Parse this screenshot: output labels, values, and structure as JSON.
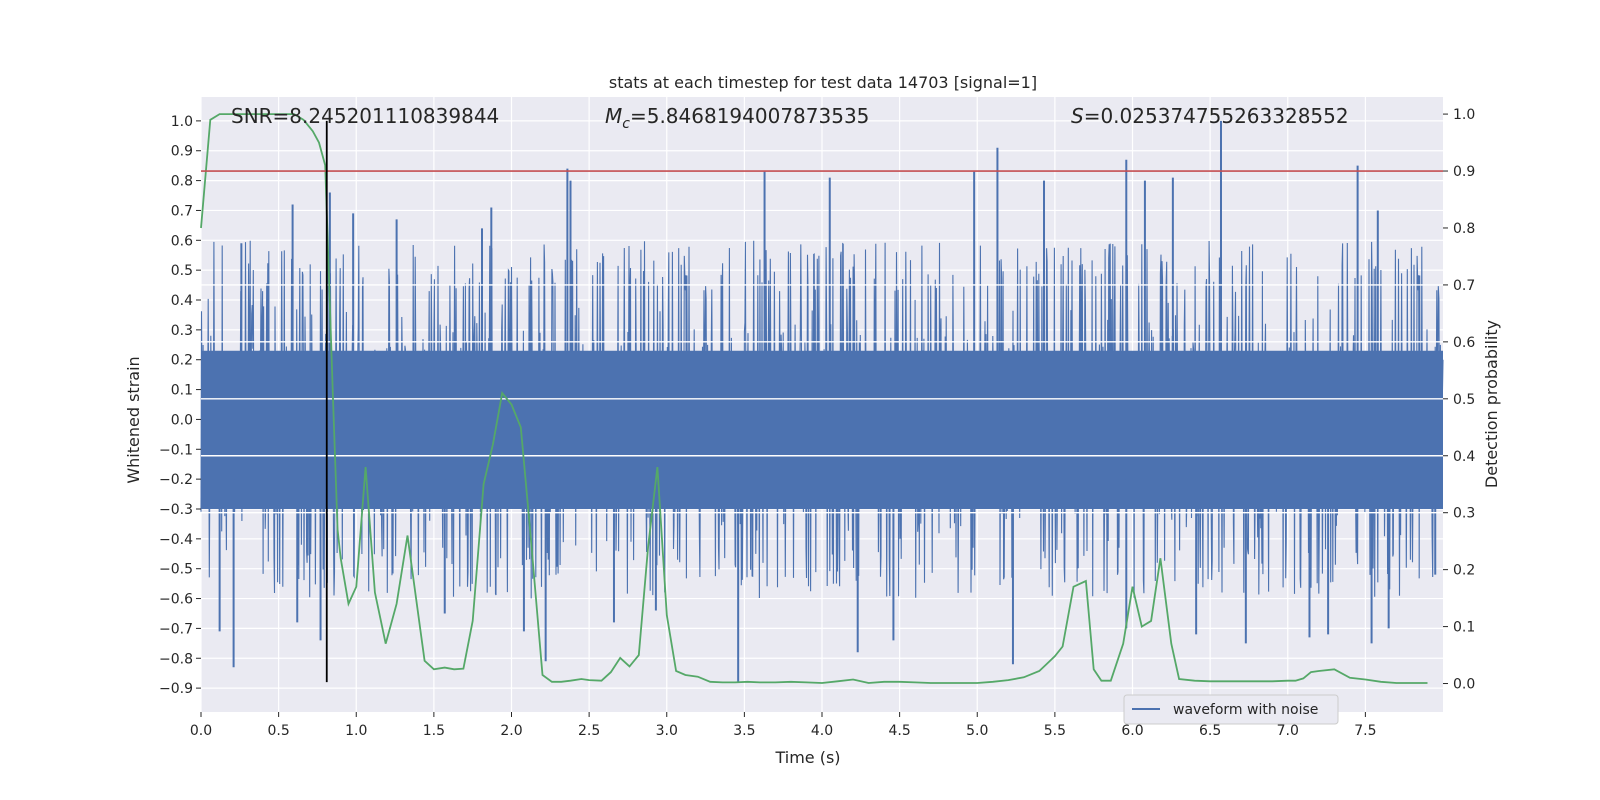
{
  "chart_data": {
    "type": "line",
    "title": "stats at each timestep for test data 14703 [signal=1]",
    "xlabel": "Time (s)",
    "ylabel_left": "Whitened strain",
    "ylabel_right": "Detection probability",
    "xlim": [
      0,
      8
    ],
    "ylim_left": [
      -0.98,
      1.08
    ],
    "ylim_right": [
      -0.05,
      1.03
    ],
    "x_ticks": [
      0.0,
      0.5,
      1.0,
      1.5,
      2.0,
      2.5,
      3.0,
      3.5,
      4.0,
      4.5,
      5.0,
      5.5,
      6.0,
      6.5,
      7.0,
      7.5
    ],
    "x_tick_labels": [
      "0.0",
      "0.5",
      "1.0",
      "1.5",
      "2.0",
      "2.5",
      "3.0",
      "3.5",
      "4.0",
      "4.5",
      "5.0",
      "5.5",
      "6.0",
      "6.5",
      "7.0",
      "7.5"
    ],
    "y_left_ticks": [
      -0.9,
      -0.8,
      -0.7,
      -0.6,
      -0.5,
      -0.4,
      -0.3,
      -0.2,
      -0.1,
      0.0,
      0.1,
      0.2,
      0.3,
      0.4,
      0.5,
      0.6,
      0.7,
      0.8,
      0.9,
      1.0
    ],
    "y_left_tick_labels": [
      "−0.9",
      "−0.8",
      "−0.7",
      "−0.6",
      "−0.5",
      "−0.4",
      "−0.3",
      "−0.2",
      "−0.1",
      "0.0",
      "0.1",
      "0.2",
      "0.3",
      "0.4",
      "0.5",
      "0.6",
      "0.7",
      "0.8",
      "0.9",
      "1.0"
    ],
    "y_right_ticks": [
      0.0,
      0.1,
      0.2,
      0.3,
      0.4,
      0.5,
      0.6,
      0.7,
      0.8,
      0.9,
      1.0
    ],
    "y_right_tick_labels": [
      "0.0",
      "0.1",
      "0.2",
      "0.3",
      "0.4",
      "0.5",
      "0.6",
      "0.7",
      "0.8",
      "0.9",
      "1.0"
    ],
    "annotations": {
      "snr": "SNR=8.245201110839844",
      "mc_symbol": "M",
      "mc_subscript": "c",
      "mc_value": "=5.8468194007873535",
      "s_symbol": "S",
      "s_value": "=0.025374755263328552"
    },
    "grid": true,
    "legend": {
      "position": "lower-right",
      "entries": [
        "waveform with noise"
      ]
    },
    "series": [
      {
        "name": "waveform with noise",
        "axis": "left",
        "color": "#4c72b0",
        "kind": "noise-band",
        "core_amplitude": 0.43,
        "dense_amplitude": 0.6,
        "peaks_positive": [
          [
            0.26,
            0.59
          ],
          [
            0.59,
            0.72
          ],
          [
            0.83,
            0.76
          ],
          [
            0.98,
            0.69
          ],
          [
            1.26,
            0.67
          ],
          [
            1.81,
            0.64
          ],
          [
            1.87,
            0.71
          ],
          [
            2.36,
            0.84
          ],
          [
            2.38,
            0.8
          ],
          [
            3.63,
            0.83
          ],
          [
            4.05,
            0.81
          ],
          [
            4.98,
            0.83
          ],
          [
            5.13,
            0.91
          ],
          [
            5.43,
            0.8
          ],
          [
            5.96,
            0.87
          ],
          [
            6.08,
            0.8
          ],
          [
            6.26,
            0.81
          ],
          [
            6.57,
            1.0
          ],
          [
            7.45,
            0.85
          ],
          [
            7.58,
            0.7
          ]
        ],
        "peaks_negative": [
          [
            0.12,
            -0.71
          ],
          [
            0.21,
            -0.83
          ],
          [
            0.62,
            -0.68
          ],
          [
            0.77,
            -0.74
          ],
          [
            1.57,
            -0.65
          ],
          [
            2.08,
            -0.71
          ],
          [
            2.22,
            -0.81
          ],
          [
            2.66,
            -0.68
          ],
          [
            2.93,
            -0.64
          ],
          [
            3.46,
            -0.88
          ],
          [
            4.23,
            -0.78
          ],
          [
            4.46,
            -0.74
          ],
          [
            5.23,
            -0.82
          ],
          [
            5.96,
            -0.7
          ],
          [
            6.41,
            -0.72
          ],
          [
            6.73,
            -0.75
          ],
          [
            7.14,
            -0.73
          ],
          [
            7.26,
            -0.72
          ],
          [
            7.54,
            -0.75
          ],
          [
            7.65,
            -0.7
          ],
          [
            7.95,
            -0.52
          ]
        ]
      },
      {
        "name": "",
        "axis": "right",
        "color": "#55a868",
        "x": [
          0.0,
          0.06,
          0.12,
          0.2,
          0.3,
          0.4,
          0.5,
          0.6,
          0.66,
          0.72,
          0.76,
          0.8,
          0.85,
          0.88,
          0.9,
          0.95,
          1.0,
          1.06,
          1.12,
          1.19,
          1.26,
          1.33,
          1.39,
          1.44,
          1.5,
          1.57,
          1.63,
          1.69,
          1.75,
          1.82,
          1.88,
          1.94,
          2.0,
          2.06,
          2.12,
          2.2,
          2.26,
          2.32,
          2.38,
          2.45,
          2.5,
          2.58,
          2.64,
          2.7,
          2.76,
          2.82,
          2.88,
          2.94,
          3.0,
          3.06,
          3.12,
          3.2,
          3.28,
          3.36,
          3.44,
          3.52,
          3.6,
          3.7,
          3.8,
          3.9,
          4.0,
          4.1,
          4.2,
          4.3,
          4.4,
          4.5,
          4.6,
          4.7,
          4.8,
          4.9,
          5.0,
          5.1,
          5.2,
          5.3,
          5.4,
          5.45,
          5.5,
          5.55,
          5.62,
          5.7,
          5.75,
          5.8,
          5.86,
          5.94,
          6.0,
          6.06,
          6.12,
          6.18,
          6.25,
          6.3,
          6.4,
          6.5,
          6.6,
          6.7,
          6.8,
          6.9,
          7.0,
          7.05,
          7.1,
          7.15,
          7.2,
          7.3,
          7.4,
          7.5,
          7.6,
          7.7,
          7.8,
          7.9
        ],
        "y": [
          0.8,
          0.99,
          1.0,
          1.0,
          1.0,
          1.0,
          1.0,
          1.0,
          0.99,
          0.97,
          0.95,
          0.91,
          0.5,
          0.27,
          0.22,
          0.14,
          0.17,
          0.38,
          0.16,
          0.07,
          0.14,
          0.26,
          0.14,
          0.04,
          0.025,
          0.028,
          0.025,
          0.026,
          0.11,
          0.35,
          0.42,
          0.51,
          0.49,
          0.45,
          0.27,
          0.015,
          0.003,
          0.003,
          0.005,
          0.008,
          0.006,
          0.005,
          0.02,
          0.045,
          0.03,
          0.05,
          0.24,
          0.38,
          0.12,
          0.022,
          0.015,
          0.012,
          0.003,
          0.002,
          0.002,
          0.003,
          0.002,
          0.002,
          0.003,
          0.002,
          0.001,
          0.004,
          0.007,
          0.001,
          0.003,
          0.003,
          0.002,
          0.001,
          0.001,
          0.001,
          0.001,
          0.003,
          0.006,
          0.011,
          0.022,
          0.035,
          0.048,
          0.065,
          0.17,
          0.18,
          0.025,
          0.005,
          0.005,
          0.07,
          0.17,
          0.1,
          0.11,
          0.22,
          0.07,
          0.008,
          0.005,
          0.004,
          0.004,
          0.004,
          0.004,
          0.004,
          0.005,
          0.005,
          0.009,
          0.02,
          0.022,
          0.025,
          0.01,
          0.007,
          0.003,
          0.001,
          0.001,
          0.001
        ]
      }
    ],
    "threshold": {
      "axis": "right",
      "value": 0.9,
      "color": "#c44e52"
    },
    "vertical_marker": {
      "x": 0.81,
      "y_from": -0.88,
      "y_to": 1.0,
      "axis": "left",
      "color": "#000000"
    },
    "legend_label": "waveform with noise"
  }
}
